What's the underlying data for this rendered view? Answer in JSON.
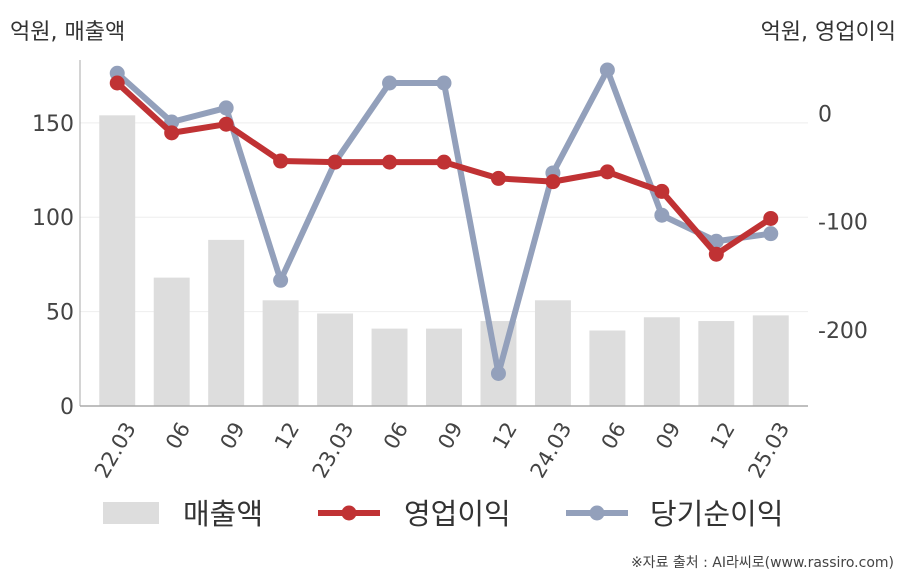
{
  "units": {
    "left": "억원, 매출액",
    "right": "억원, 영업이익"
  },
  "source": "※자료 출처 : AI라씨로(www.rassiro.com)",
  "colors": {
    "revenue": "#dddddd",
    "operating": "#c03234",
    "net": "#93a0bb",
    "axis": "#aaaaaa",
    "grid": "#eeeeee"
  },
  "chart_data": {
    "type": "bar+line",
    "categories": [
      "22.03",
      "06",
      "09",
      "12",
      "23.03",
      "06",
      "09",
      "12",
      "24.03",
      "06",
      "09",
      "12",
      "25.03"
    ],
    "y_left": {
      "ticks": [
        0,
        50,
        100,
        150
      ],
      "range": [
        0,
        178
      ]
    },
    "y_right": {
      "ticks": [
        0,
        -100,
        -200
      ],
      "range": [
        -270,
        40
      ]
    },
    "grid": true,
    "legend_position": "bottom",
    "series": [
      {
        "name": "매출액",
        "type": "bar",
        "axis": "left",
        "values": [
          154,
          68,
          88,
          56,
          49,
          41,
          41,
          45,
          56,
          40,
          47,
          45,
          48
        ]
      },
      {
        "name": "영업이익",
        "type": "line",
        "axis": "right",
        "values": [
          28,
          -18,
          -10,
          -44,
          -45,
          -45,
          -45,
          -60,
          -63,
          -54,
          -72,
          -130,
          -97
        ]
      },
      {
        "name": "당기순이익",
        "type": "line",
        "axis": "right",
        "values": [
          37,
          -8,
          5,
          -154,
          -45,
          28,
          28,
          -240,
          -55,
          40,
          -94,
          -118,
          -111
        ]
      }
    ]
  }
}
